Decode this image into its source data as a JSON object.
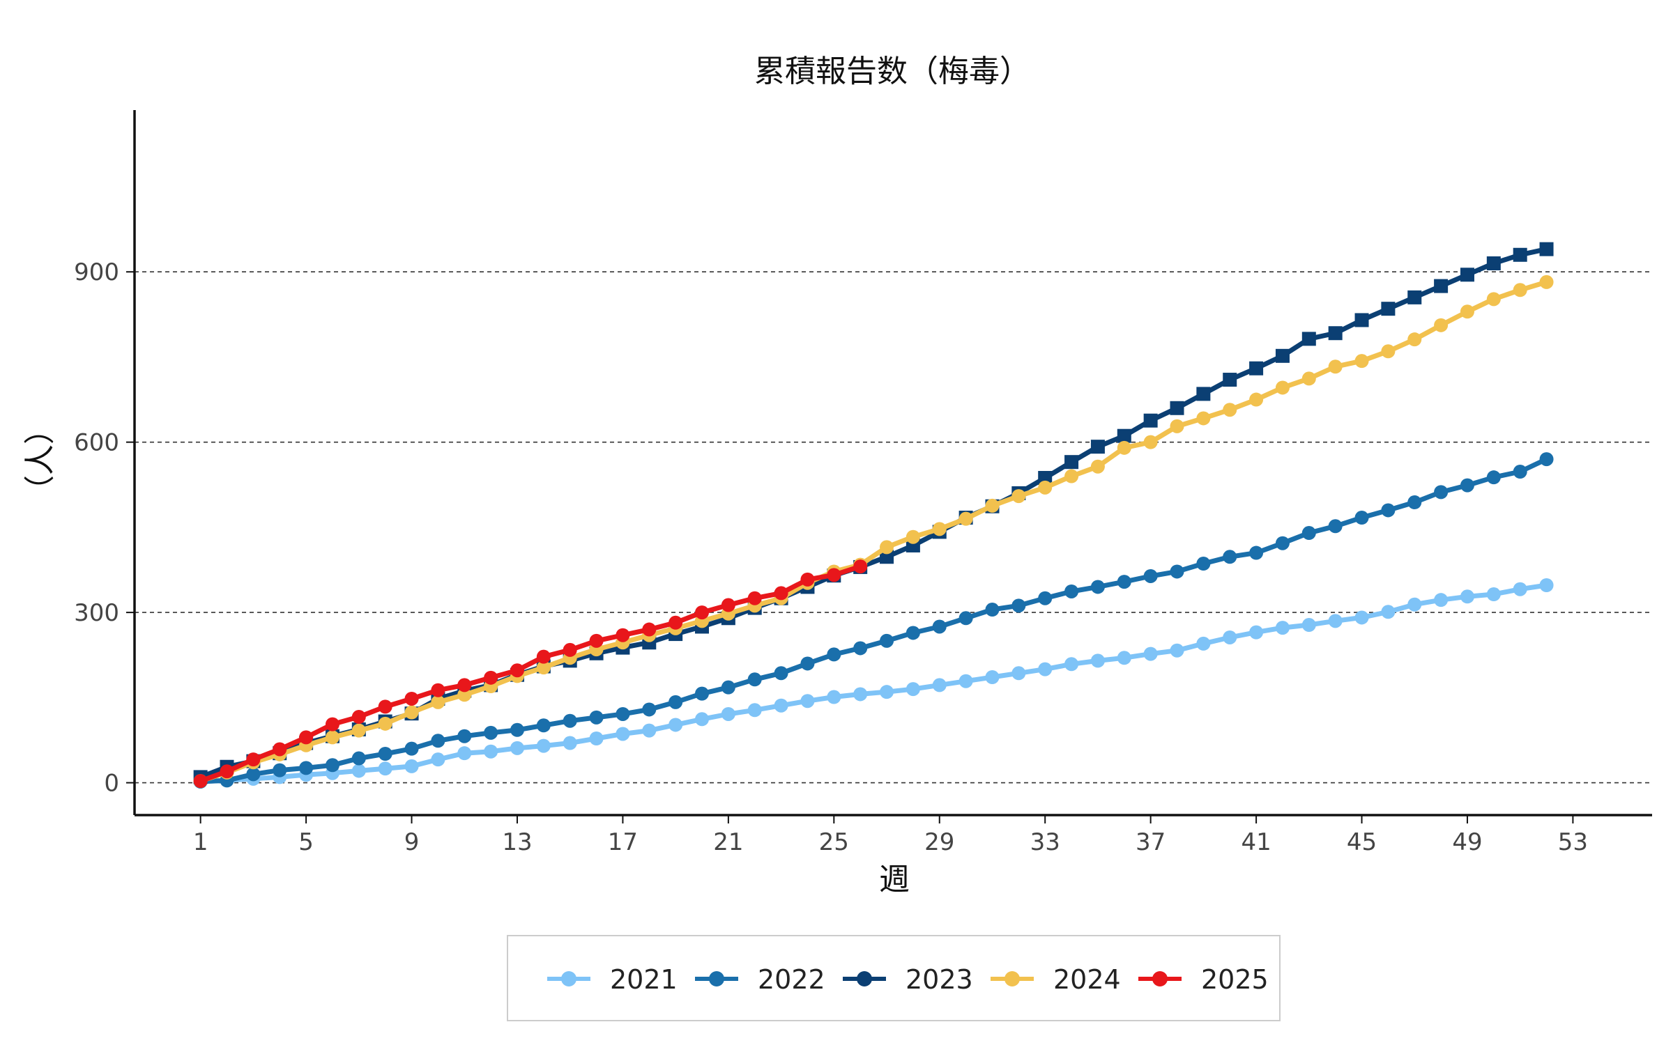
{
  "chart_data": {
    "type": "line",
    "title": "累積報告数（梅毒）",
    "xlabel": "週",
    "ylabel": "（人）",
    "xlim": [
      -1.5,
      56
    ],
    "ylim": [
      -57,
      1185
    ],
    "xticks": [
      1,
      5,
      9,
      13,
      17,
      21,
      25,
      29,
      33,
      37,
      41,
      45,
      49,
      53
    ],
    "yticks": [
      0,
      300,
      600,
      900
    ],
    "grid": "horizontal-dashed",
    "legend": "bottom",
    "series": [
      {
        "name": "2021",
        "color": "#7ec3f7",
        "marker": "circle",
        "x": [
          1,
          2,
          3,
          4,
          5,
          6,
          7,
          8,
          9,
          10,
          11,
          12,
          13,
          14,
          15,
          16,
          17,
          18,
          19,
          20,
          21,
          22,
          23,
          24,
          25,
          26,
          27,
          28,
          29,
          30,
          31,
          32,
          33,
          34,
          35,
          36,
          37,
          38,
          39,
          40,
          41,
          42,
          43,
          44,
          45,
          46,
          47,
          48,
          49,
          50,
          51,
          52
        ],
        "y": [
          2,
          4,
          7,
          10,
          14,
          17,
          21,
          25,
          29,
          41,
          52,
          55,
          61,
          65,
          70,
          78,
          86,
          92,
          102,
          112,
          121,
          128,
          136,
          144,
          151,
          156,
          160,
          165,
          172,
          179,
          186,
          193,
          200,
          209,
          215,
          220,
          227,
          233,
          245,
          256,
          265,
          273,
          278,
          285,
          291,
          301,
          314,
          322,
          328,
          332,
          341,
          348
        ]
      },
      {
        "name": "2022",
        "color": "#1a6fab",
        "marker": "circle",
        "x": [
          1,
          2,
          3,
          4,
          5,
          6,
          7,
          8,
          9,
          10,
          11,
          12,
          13,
          14,
          15,
          16,
          17,
          18,
          19,
          20,
          21,
          22,
          23,
          24,
          25,
          26,
          27,
          28,
          29,
          30,
          31,
          32,
          33,
          34,
          35,
          36,
          37,
          38,
          39,
          40,
          41,
          42,
          43,
          44,
          45,
          46,
          47,
          48,
          49,
          50,
          51,
          52
        ],
        "y": [
          2,
          4,
          15,
          22,
          26,
          31,
          43,
          51,
          60,
          74,
          82,
          88,
          93,
          101,
          109,
          115,
          121,
          129,
          142,
          157,
          168,
          182,
          193,
          210,
          226,
          237,
          250,
          264,
          275,
          290,
          305,
          312,
          325,
          337,
          345,
          354,
          364,
          372,
          386,
          398,
          405,
          422,
          440,
          452,
          467,
          480,
          494,
          512,
          524,
          538,
          548,
          570
        ]
      },
      {
        "name": "2023",
        "color": "#0b3f73",
        "marker": "square",
        "x": [
          1,
          2,
          3,
          4,
          5,
          6,
          7,
          8,
          9,
          10,
          11,
          12,
          13,
          14,
          15,
          16,
          17,
          18,
          19,
          20,
          21,
          22,
          23,
          24,
          25,
          26,
          27,
          28,
          29,
          30,
          31,
          32,
          33,
          34,
          35,
          36,
          37,
          38,
          39,
          40,
          41,
          42,
          43,
          44,
          45,
          46,
          47,
          48,
          49,
          50,
          51,
          52
        ],
        "y": [
          10,
          28,
          38,
          52,
          70,
          82,
          94,
          108,
          122,
          148,
          162,
          172,
          190,
          205,
          215,
          228,
          238,
          247,
          262,
          275,
          290,
          308,
          325,
          345,
          365,
          380,
          398,
          418,
          442,
          467,
          487,
          510,
          537,
          565,
          592,
          611,
          638,
          660,
          685,
          710,
          730,
          752,
          782,
          792,
          815,
          835,
          855,
          875,
          895,
          915,
          930,
          940
        ]
      },
      {
        "name": "2024",
        "color": "#f2c14e",
        "marker": "circle",
        "x": [
          1,
          2,
          3,
          4,
          5,
          6,
          7,
          8,
          9,
          10,
          11,
          12,
          13,
          14,
          15,
          16,
          17,
          18,
          19,
          20,
          21,
          22,
          23,
          24,
          25,
          26,
          27,
          28,
          29,
          30,
          31,
          32,
          33,
          34,
          35,
          36,
          37,
          38,
          39,
          40,
          41,
          42,
          43,
          44,
          45,
          46,
          47,
          48,
          49,
          50,
          51,
          52
        ],
        "y": [
          3,
          18,
          36,
          50,
          66,
          80,
          92,
          104,
          124,
          142,
          155,
          170,
          188,
          203,
          220,
          235,
          247,
          260,
          272,
          285,
          298,
          312,
          325,
          352,
          372,
          384,
          415,
          433,
          447,
          465,
          488,
          505,
          520,
          540,
          557,
          590,
          600,
          628,
          642,
          657,
          675,
          696,
          712,
          733,
          743,
          760,
          781,
          806,
          830,
          852,
          868,
          882
        ]
      },
      {
        "name": "2025",
        "color": "#e8171b",
        "marker": "circle",
        "x": [
          1,
          2,
          3,
          4,
          5,
          6,
          7,
          8,
          9,
          10,
          11,
          12,
          13,
          14,
          15,
          16,
          17,
          18,
          19,
          20,
          21,
          22,
          23,
          24,
          25,
          26
        ],
        "y": [
          3,
          20,
          41,
          59,
          80,
          103,
          116,
          134,
          148,
          163,
          172,
          185,
          198,
          222,
          234,
          250,
          260,
          270,
          282,
          300,
          313,
          325,
          334,
          358,
          366,
          381
        ]
      }
    ]
  }
}
